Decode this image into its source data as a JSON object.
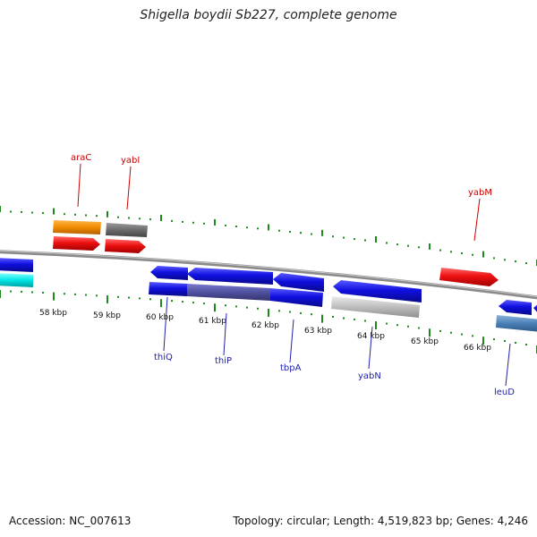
{
  "title": "Shigella boydii Sb227, complete genome",
  "accession": "Accession: NC_007613",
  "summary": "Topology: circular; Length: 4,519,823 bp; Genes: 4,246",
  "colors": {
    "forward_label": "#cc0000",
    "reverse_label": "#1f1fb0",
    "tick": "#1e8a1e",
    "backbone": "#8a8a8a"
  },
  "scale_labels": [
    "58 kbp",
    "59 kbp",
    "60 kbp",
    "61 kbp",
    "62 kbp",
    "63 kbp",
    "64 kbp",
    "65 kbp",
    "66 kbp"
  ],
  "forward_gene_labels": [
    "araC",
    "yabI",
    "yabM"
  ],
  "reverse_gene_labels": [
    "thiQ",
    "thiP",
    "tbpA",
    "yabN",
    "leuD"
  ],
  "features": [
    {
      "name": "orange-feature",
      "strand": "forward",
      "color": "#f08c00"
    },
    {
      "name": "gray-feature",
      "strand": "forward",
      "color": "#6b6b6b"
    },
    {
      "name": "red-gene-arac",
      "strand": "forward",
      "color": "#ee1111"
    },
    {
      "name": "red-gene-yabi",
      "strand": "forward",
      "color": "#ee1111"
    },
    {
      "name": "red-gene-yabm",
      "strand": "forward",
      "color": "#ee1111"
    },
    {
      "name": "blue-gene-left",
      "strand": "reverse",
      "color": "#1010e0"
    },
    {
      "name": "cyan-feature",
      "strand": "reverse",
      "color": "#00e5e5"
    },
    {
      "name": "blue-gene-thiq",
      "strand": "reverse",
      "color": "#1010e0"
    },
    {
      "name": "blue-gene-thip",
      "strand": "reverse",
      "color": "#1010e0"
    },
    {
      "name": "blue-gene-tbpa",
      "strand": "reverse",
      "color": "#1010e0"
    },
    {
      "name": "blue-gene-yabn",
      "strand": "reverse",
      "color": "#1010e0"
    },
    {
      "name": "blue-feature-thiq-region",
      "strand": "reverse",
      "color": "#1010e0"
    },
    {
      "name": "purple-feature-thip-region",
      "strand": "reverse",
      "color": "#5050a0"
    },
    {
      "name": "blue-feature-tbpa-region",
      "strand": "reverse",
      "color": "#1010e0"
    },
    {
      "name": "silver-feature",
      "strand": "reverse",
      "color": "#bdbdbd"
    },
    {
      "name": "blue-gene-leud",
      "strand": "reverse",
      "color": "#1010e0"
    },
    {
      "name": "steel-blue-feature",
      "strand": "reverse",
      "color": "#4a7fb5"
    }
  ]
}
